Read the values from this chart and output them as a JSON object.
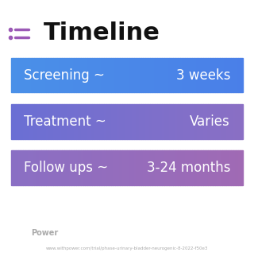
{
  "title": "Timeline",
  "background_color": "#ffffff",
  "rows": [
    {
      "label": "Screening ~",
      "value": "3 weeks",
      "color_left": "#4a90e8",
      "color_right": "#4a7fe8"
    },
    {
      "label": "Treatment ~",
      "value": "Varies",
      "color_left": "#6a6fd4",
      "color_right": "#8a6fc4"
    },
    {
      "label": "Follow ups ~",
      "value": "3-24 months",
      "color_left": "#8a6fc4",
      "color_right": "#a06ab4"
    }
  ],
  "icon_color": "#9b59b6",
  "title_fontsize": 22,
  "label_fontsize": 12,
  "value_fontsize": 12,
  "footer_text": "www.withpower.com/trial/phase-urinary-bladder-neurogenic-8-2022-f50e3",
  "footer_logo_text": "Power",
  "footer_color": "#aaaaaa"
}
